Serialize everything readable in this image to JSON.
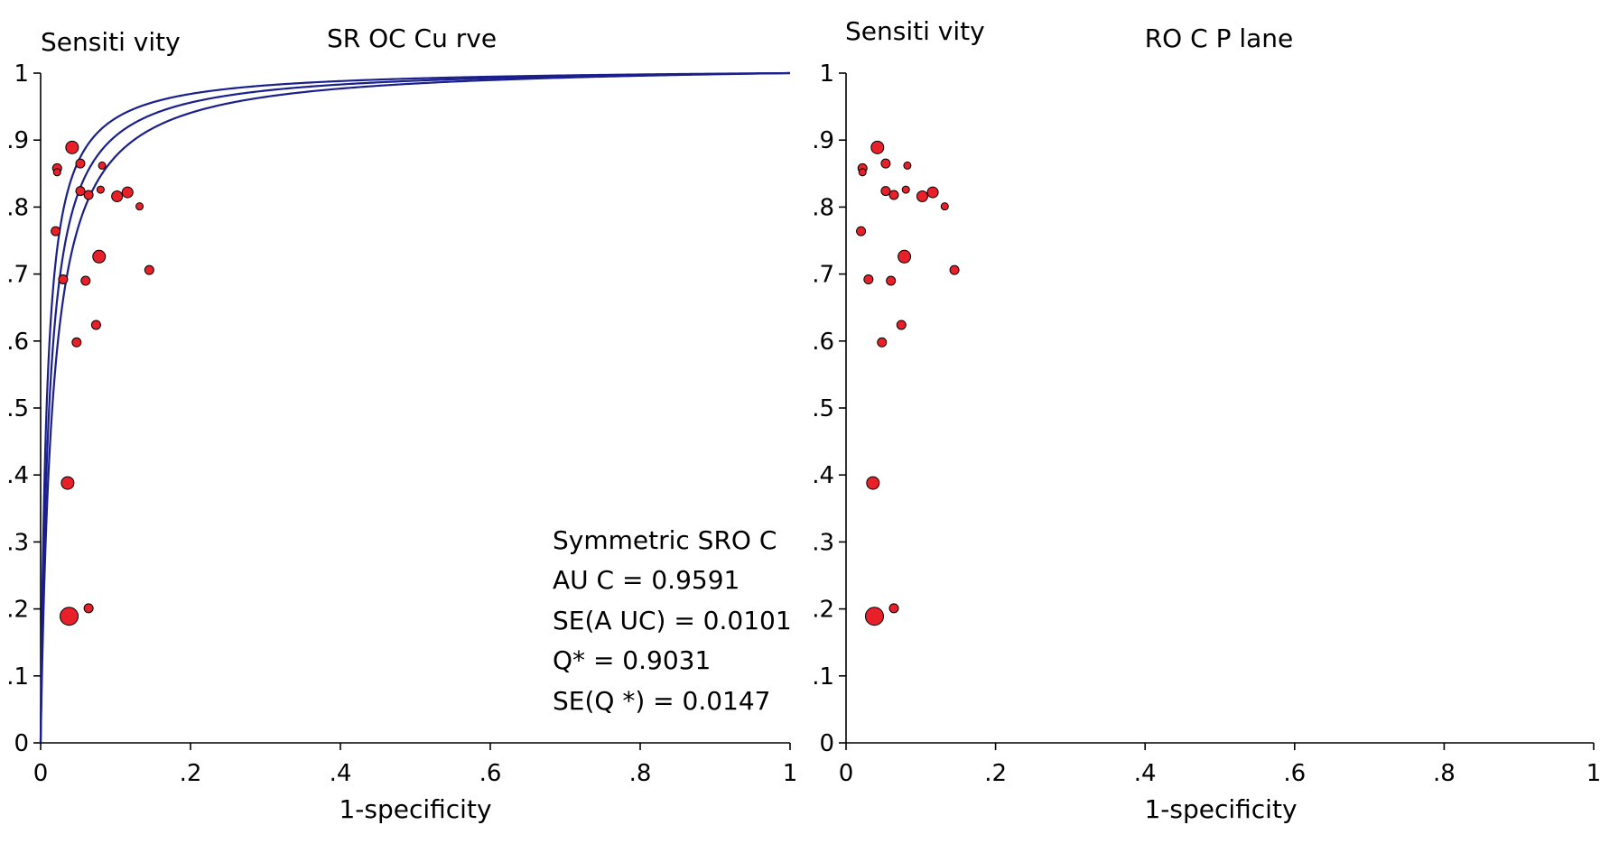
{
  "chart_data": [
    {
      "type": "scatter",
      "title": "SR OC Cu rve",
      "ylabel": "Sensiti vity",
      "xlabel": "1-specificity",
      "xlim": [
        0,
        1
      ],
      "ylim": [
        0,
        1
      ],
      "x_ticks": [
        "0",
        ".2",
        ".4",
        ".6",
        ".8",
        "1"
      ],
      "y_ticks": [
        "0",
        ".1",
        ".2",
        ".3",
        ".4",
        ".5",
        ".6",
        ".7",
        ".8",
        ".9",
        "1"
      ],
      "grid": false,
      "marker_color": "#e8202a",
      "curve_color": "#1a1f8c",
      "curves": [
        {
          "kind": "sroc_q_lower",
          "q": 0.8884
        },
        {
          "kind": "sroc",
          "q": 0.9031
        },
        {
          "kind": "sroc_q_upper",
          "q": 0.9178
        }
      ],
      "points": [
        {
          "x": 0.022,
          "y": 0.858,
          "size": 5
        },
        {
          "x": 0.022,
          "y": 0.852,
          "size": 4
        },
        {
          "x": 0.042,
          "y": 0.889,
          "size": 7
        },
        {
          "x": 0.053,
          "y": 0.865,
          "size": 5
        },
        {
          "x": 0.082,
          "y": 0.862,
          "size": 4
        },
        {
          "x": 0.053,
          "y": 0.824,
          "size": 5
        },
        {
          "x": 0.064,
          "y": 0.818,
          "size": 5
        },
        {
          "x": 0.08,
          "y": 0.826,
          "size": 4
        },
        {
          "x": 0.102,
          "y": 0.816,
          "size": 6
        },
        {
          "x": 0.116,
          "y": 0.822,
          "size": 6
        },
        {
          "x": 0.132,
          "y": 0.801,
          "size": 4
        },
        {
          "x": 0.02,
          "y": 0.764,
          "size": 5
        },
        {
          "x": 0.078,
          "y": 0.726,
          "size": 7
        },
        {
          "x": 0.03,
          "y": 0.692,
          "size": 5
        },
        {
          "x": 0.06,
          "y": 0.69,
          "size": 5
        },
        {
          "x": 0.145,
          "y": 0.706,
          "size": 5
        },
        {
          "x": 0.074,
          "y": 0.624,
          "size": 5
        },
        {
          "x": 0.048,
          "y": 0.598,
          "size": 5
        },
        {
          "x": 0.036,
          "y": 0.388,
          "size": 7
        },
        {
          "x": 0.038,
          "y": 0.189,
          "size": 10
        },
        {
          "x": 0.064,
          "y": 0.201,
          "size": 5
        }
      ],
      "annotation": [
        "Symmetric SRO C",
        "AU C = 0.9591",
        "SE(A UC)  = 0.0101",
        "Q* = 0.9031",
        "SE(Q *) = 0.0147"
      ]
    },
    {
      "type": "scatter",
      "title": "RO C P lane",
      "ylabel": "Sensiti vity",
      "xlabel": "1-specificity",
      "xlim": [
        0,
        1
      ],
      "ylim": [
        0,
        1
      ],
      "x_ticks": [
        "0",
        ".2",
        ".4",
        ".6",
        ".8",
        "1"
      ],
      "y_ticks": [
        "0",
        ".1",
        ".2",
        ".3",
        ".4",
        ".5",
        ".6",
        ".7",
        ".8",
        ".9",
        "1"
      ],
      "grid": false,
      "marker_color": "#e8202a",
      "points": [
        {
          "x": 0.022,
          "y": 0.858,
          "size": 5
        },
        {
          "x": 0.022,
          "y": 0.852,
          "size": 4
        },
        {
          "x": 0.042,
          "y": 0.889,
          "size": 7
        },
        {
          "x": 0.053,
          "y": 0.865,
          "size": 5
        },
        {
          "x": 0.082,
          "y": 0.862,
          "size": 4
        },
        {
          "x": 0.053,
          "y": 0.824,
          "size": 5
        },
        {
          "x": 0.064,
          "y": 0.818,
          "size": 5
        },
        {
          "x": 0.08,
          "y": 0.826,
          "size": 4
        },
        {
          "x": 0.102,
          "y": 0.816,
          "size": 6
        },
        {
          "x": 0.116,
          "y": 0.822,
          "size": 6
        },
        {
          "x": 0.132,
          "y": 0.801,
          "size": 4
        },
        {
          "x": 0.02,
          "y": 0.764,
          "size": 5
        },
        {
          "x": 0.078,
          "y": 0.726,
          "size": 7
        },
        {
          "x": 0.03,
          "y": 0.692,
          "size": 5
        },
        {
          "x": 0.06,
          "y": 0.69,
          "size": 5
        },
        {
          "x": 0.145,
          "y": 0.706,
          "size": 5
        },
        {
          "x": 0.074,
          "y": 0.624,
          "size": 5
        },
        {
          "x": 0.048,
          "y": 0.598,
          "size": 5
        },
        {
          "x": 0.036,
          "y": 0.388,
          "size": 7
        },
        {
          "x": 0.038,
          "y": 0.189,
          "size": 10
        },
        {
          "x": 0.064,
          "y": 0.201,
          "size": 5
        }
      ]
    }
  ]
}
